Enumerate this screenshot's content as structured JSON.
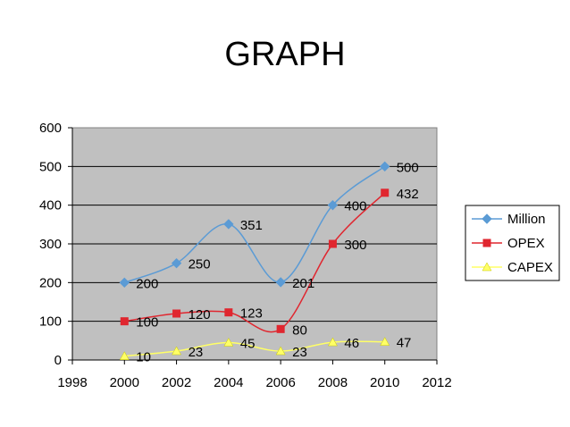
{
  "chart_data": {
    "type": "line",
    "title": "GRAPH",
    "xlabel": "",
    "ylabel": "",
    "xlim": [
      1998,
      2012
    ],
    "ylim": [
      0,
      600
    ],
    "x_ticks": [
      1998,
      2000,
      2002,
      2004,
      2006,
      2008,
      2010,
      2012
    ],
    "y_ticks": [
      0,
      100,
      200,
      300,
      400,
      500,
      600
    ],
    "grid": true,
    "legend_position": "right",
    "plot_background": "#c0c0c0",
    "series": [
      {
        "name": "Million",
        "color": "#5b9bd5",
        "marker": "diamond",
        "x": [
          2000,
          2002,
          2004,
          2006,
          2008,
          2010
        ],
        "y": [
          200,
          250,
          351,
          201,
          400,
          500
        ]
      },
      {
        "name": "OPEX",
        "color": "#e0262f",
        "marker": "square",
        "x": [
          2000,
          2002,
          2004,
          2006,
          2008,
          2010
        ],
        "y": [
          100,
          120,
          123,
          80,
          300,
          432
        ]
      },
      {
        "name": "CAPEX",
        "color": "#ffff66",
        "marker": "triangle",
        "x": [
          2000,
          2002,
          2004,
          2006,
          2008,
          2010
        ],
        "y": [
          10,
          23,
          45,
          23,
          46,
          47
        ]
      }
    ]
  }
}
